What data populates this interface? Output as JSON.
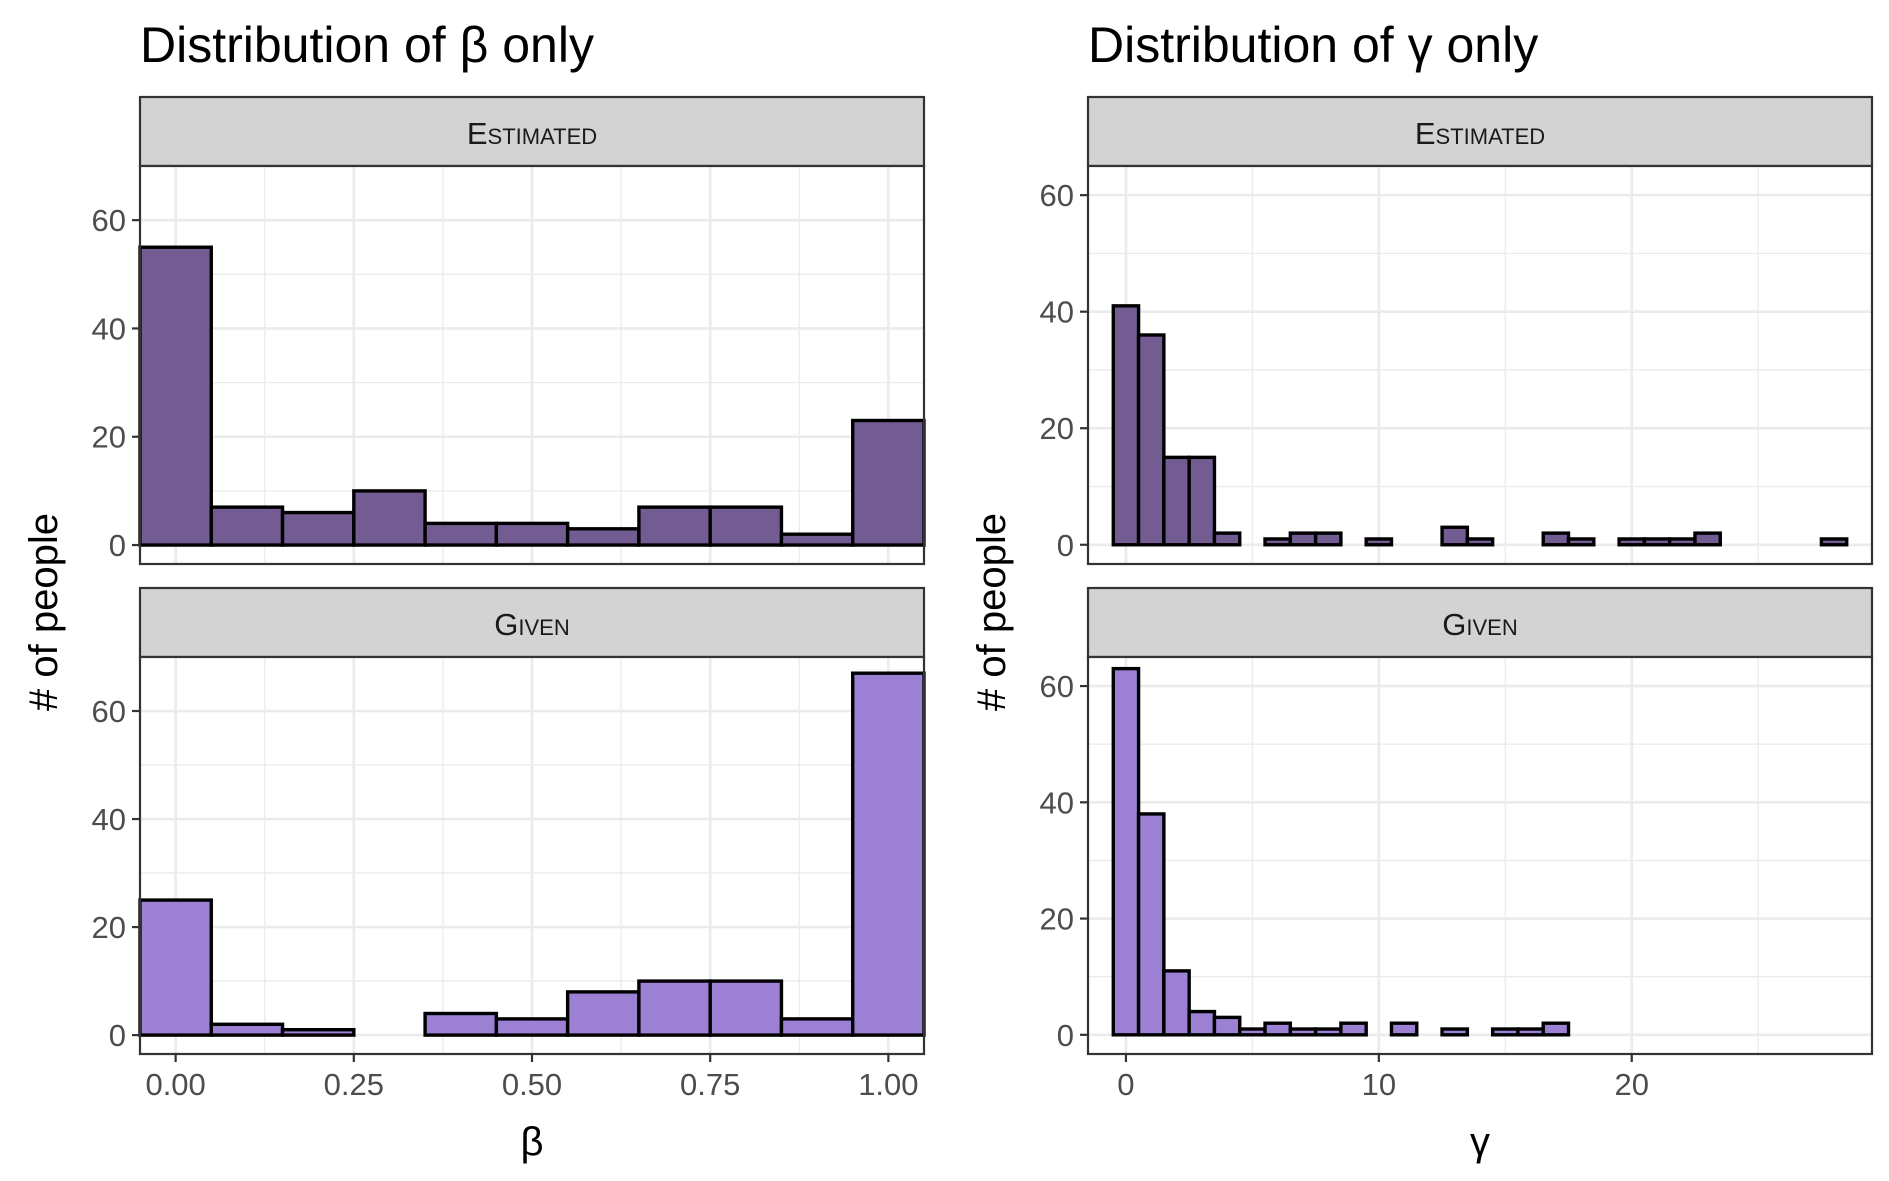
{
  "chart_data": [
    {
      "type": "bar",
      "title": "Distribution of β only",
      "xlabel": "β",
      "ylabel": "# of people",
      "x_ticks": [
        0,
        0.25,
        0.5,
        0.75,
        1
      ],
      "x_tick_labels": [
        "0.00",
        "0.25",
        "0.50",
        "0.75",
        "1.00"
      ],
      "xlim": [
        -0.05,
        1.05
      ],
      "y_ticks": [
        0,
        20,
        40,
        60
      ],
      "ylim": [
        0,
        70
      ],
      "grid": true,
      "bin_width": 0.1,
      "bin_centers": [
        0,
        0.1,
        0.2,
        0.3,
        0.4,
        0.5,
        0.6,
        0.7,
        0.8,
        0.9,
        1.0
      ],
      "series": [
        {
          "name": "Estimated",
          "fill": "#735c92",
          "values": [
            55,
            7,
            6,
            10,
            4,
            4,
            3,
            7,
            7,
            2,
            23
          ]
        },
        {
          "name": "Given",
          "fill": "#9c80d3",
          "values": [
            25,
            2,
            1,
            0,
            4,
            3,
            8,
            10,
            10,
            3,
            67
          ]
        }
      ]
    },
    {
      "type": "bar",
      "title": "Distribution of γ only",
      "xlabel": "γ",
      "ylabel": "# of people",
      "x_ticks": [
        0,
        10,
        20
      ],
      "x_tick_labels": [
        "0",
        "10",
        "20"
      ],
      "xlim": [
        -1.5,
        29.5
      ],
      "y_ticks": [
        0,
        20,
        40,
        60
      ],
      "ylim": [
        0,
        65
      ],
      "grid": true,
      "bin_width": 1,
      "bin_centers": [
        0,
        1,
        2,
        3,
        4,
        5,
        6,
        7,
        8,
        9,
        10,
        11,
        12,
        13,
        14,
        15,
        16,
        17,
        18,
        19,
        20,
        21,
        22,
        23,
        24,
        25,
        26,
        27,
        28
      ],
      "series": [
        {
          "name": "Estimated",
          "fill": "#735c92",
          "values": [
            41,
            36,
            15,
            15,
            2,
            0,
            1,
            2,
            2,
            0,
            1,
            0,
            0,
            3,
            1,
            0,
            0,
            2,
            1,
            0,
            1,
            1,
            1,
            2,
            0,
            0,
            0,
            0,
            1
          ]
        },
        {
          "name": "Given",
          "fill": "#9c80d3",
          "values": [
            63,
            38,
            11,
            4,
            3,
            1,
            2,
            1,
            1,
            2,
            0,
            2,
            0,
            1,
            0,
            1,
            1,
            2,
            0,
            0,
            0,
            0,
            0,
            0,
            0,
            0,
            0,
            0,
            0
          ]
        }
      ]
    }
  ]
}
